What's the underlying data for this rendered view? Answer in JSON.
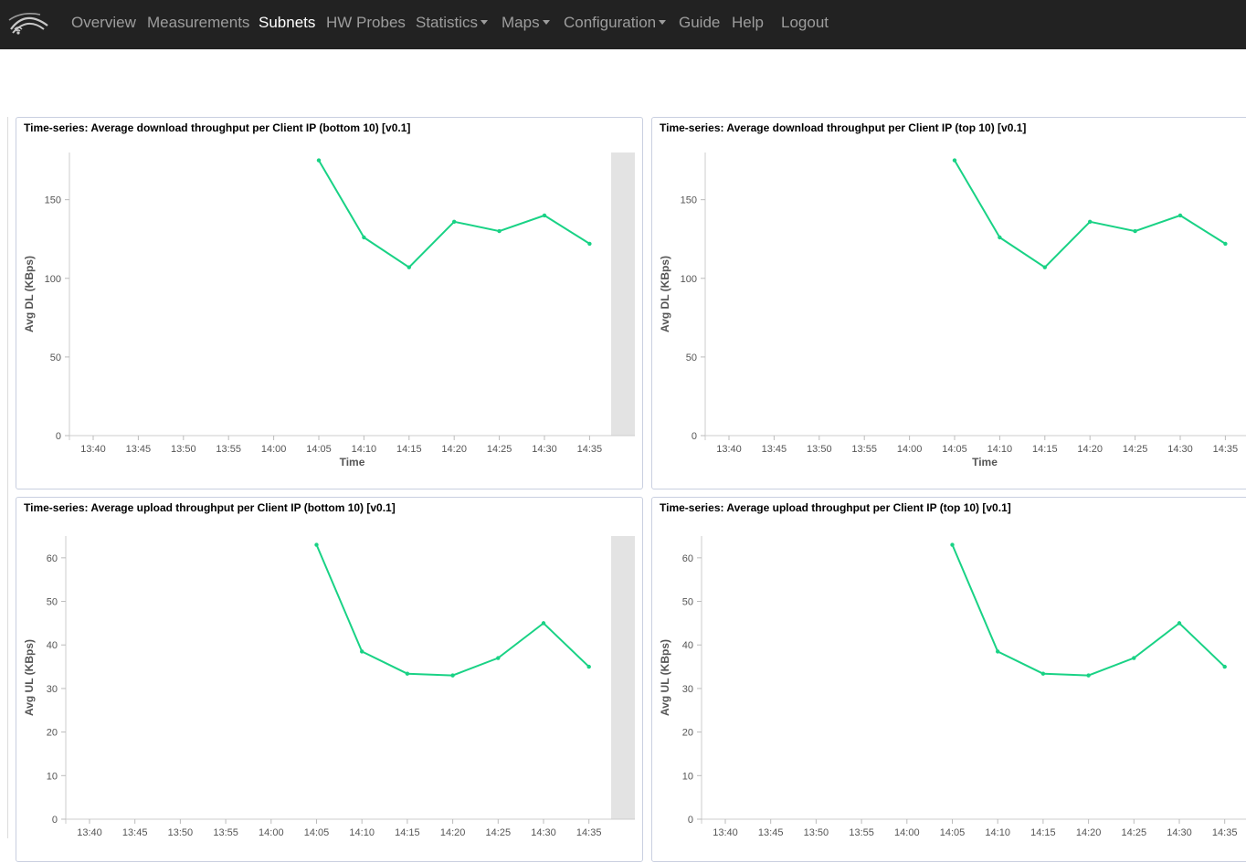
{
  "nav": {
    "items": [
      {
        "label": "Overview",
        "active": false,
        "dropdown": false
      },
      {
        "label": "Measurements",
        "active": false,
        "dropdown": false
      },
      {
        "label": "Subnets",
        "active": true,
        "dropdown": false
      },
      {
        "label": "HW Probes",
        "active": false,
        "dropdown": false
      },
      {
        "label": "Statistics",
        "active": false,
        "dropdown": true
      },
      {
        "label": "Maps",
        "active": false,
        "dropdown": true
      },
      {
        "label": "Configuration",
        "active": false,
        "dropdown": true
      },
      {
        "label": "Guide",
        "active": false,
        "dropdown": false
      },
      {
        "label": "Help",
        "active": false,
        "dropdown": false
      },
      {
        "label": "Logout",
        "active": false,
        "dropdown": false
      }
    ],
    "logo_icon": "wifi-wave-logo-icon"
  },
  "colors": {
    "navbar_bg": "#222222",
    "nav_text": "#9d9d9d",
    "nav_active": "#ffffff",
    "line": "#19d285",
    "panel_border": "#c9cfe0",
    "highlight_band": "#e3e3e3"
  },
  "panels": [
    {
      "title": "Time-series: Average download throughput per Client IP (bottom 10) [v0.1]"
    },
    {
      "title": "Time-series: Average download throughput per Client IP (top 10) [v0.1]"
    },
    {
      "title": "Time-series: Average upload throughput per Client IP (bottom 10) [v0.1]"
    },
    {
      "title": "Time-series: Average upload throughput per Client IP (top 10) [v0.1]"
    }
  ],
  "chart_data": [
    {
      "type": "line",
      "title": "Time-series: Average download throughput per Client IP (bottom 10) [v0.1]",
      "xlabel": "Time",
      "ylabel": "Avg DL (KBps)",
      "x_ticks": [
        "13:40",
        "13:45",
        "13:50",
        "13:55",
        "14:00",
        "14:05",
        "14:10",
        "14:15",
        "14:20",
        "14:25",
        "14:30",
        "14:35"
      ],
      "x": [
        "14:05",
        "14:10",
        "14:15",
        "14:20",
        "14:25",
        "14:30",
        "14:35"
      ],
      "values": [
        175,
        126,
        107,
        136,
        130,
        140,
        122
      ],
      "y_ticks": [
        0,
        50,
        100,
        150
      ],
      "ylim": [
        0,
        180
      ],
      "highlight_band": true,
      "grid": false
    },
    {
      "type": "line",
      "title": "Time-series: Average download throughput per Client IP (top 10) [v0.1]",
      "xlabel": "Time",
      "ylabel": "Avg DL (KBps)",
      "x_ticks": [
        "13:40",
        "13:45",
        "13:50",
        "13:55",
        "14:00",
        "14:05",
        "14:10",
        "14:15",
        "14:20",
        "14:25",
        "14:30",
        "14:35"
      ],
      "x": [
        "14:05",
        "14:10",
        "14:15",
        "14:20",
        "14:25",
        "14:30",
        "14:35"
      ],
      "values": [
        175,
        126,
        107,
        136,
        130,
        140,
        122
      ],
      "y_ticks": [
        0,
        50,
        100,
        150
      ],
      "ylim": [
        0,
        180
      ],
      "highlight_band": false,
      "grid": false
    },
    {
      "type": "line",
      "title": "Time-series: Average upload throughput per Client IP (bottom 10) [v0.1]",
      "xlabel": "",
      "ylabel": "Avg UL (KBps)",
      "x_ticks": [
        "13:40",
        "13:45",
        "13:50",
        "13:55",
        "14:00",
        "14:05",
        "14:10",
        "14:15",
        "14:20",
        "14:25",
        "14:30",
        "14:35"
      ],
      "x": [
        "14:05",
        "14:10",
        "14:15",
        "14:20",
        "14:25",
        "14:30",
        "14:35"
      ],
      "values": [
        63,
        38.5,
        33.4,
        33,
        37,
        45,
        35
      ],
      "y_ticks": [
        0,
        10,
        20,
        30,
        40,
        50,
        60
      ],
      "ylim": [
        0,
        65
      ],
      "highlight_band": true,
      "grid": false
    },
    {
      "type": "line",
      "title": "Time-series: Average upload throughput per Client IP (top 10) [v0.1]",
      "xlabel": "",
      "ylabel": "Avg UL (KBps)",
      "x_ticks": [
        "13:40",
        "13:45",
        "13:50",
        "13:55",
        "14:00",
        "14:05",
        "14:10",
        "14:15",
        "14:20",
        "14:25",
        "14:30",
        "14:35"
      ],
      "x": [
        "14:05",
        "14:10",
        "14:15",
        "14:20",
        "14:25",
        "14:30",
        "14:35"
      ],
      "values": [
        63,
        38.5,
        33.4,
        33,
        37,
        45,
        35
      ],
      "y_ticks": [
        0,
        10,
        20,
        30,
        40,
        50,
        60
      ],
      "ylim": [
        0,
        65
      ],
      "highlight_band": false,
      "grid": false
    }
  ]
}
